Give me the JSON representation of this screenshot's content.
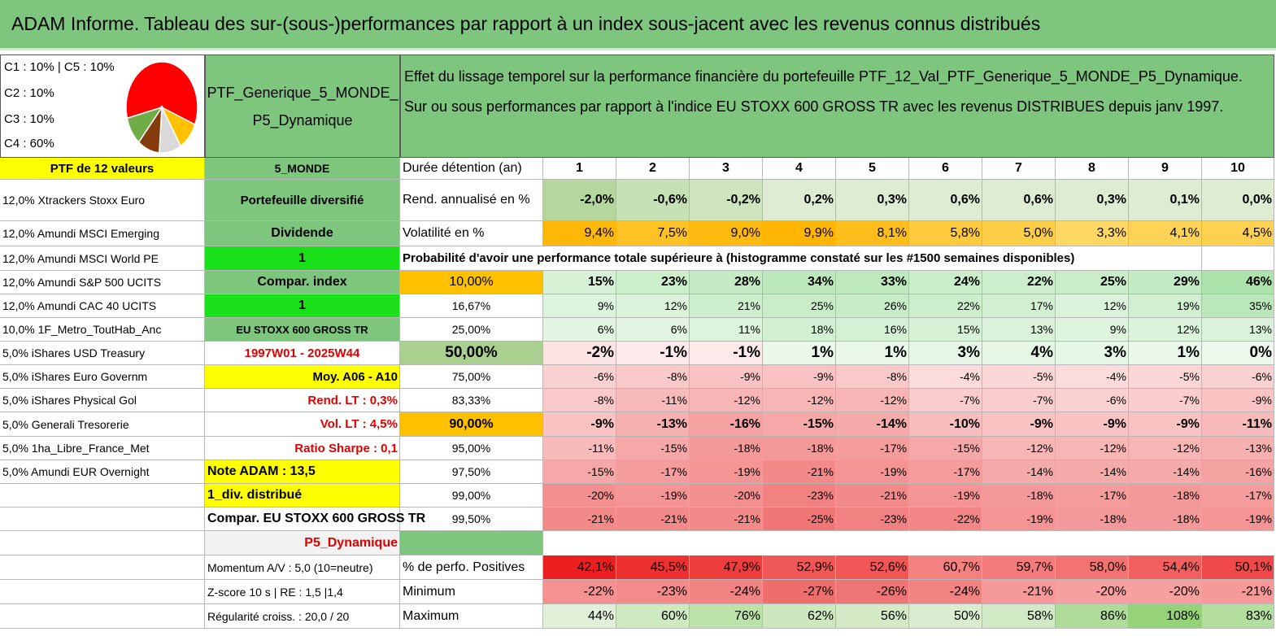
{
  "title": "ADAM Informe. Tableau des sur-(sous-)performances par rapport à un index sous-jacent avec les revenus connus distribués",
  "legend": {
    "lines": [
      "C1 : 10% | C5 : 10%",
      "C2 : 10%",
      "C3 : 10%",
      "C4 : 60%"
    ]
  },
  "pie": {
    "slices": [
      {
        "value": 60,
        "color": "#ff0000"
      },
      {
        "value": 10,
        "color": "#ffc000"
      },
      {
        "value": 10,
        "color": "#d9d9d9"
      },
      {
        "value": 10,
        "color": "#843c0c"
      },
      {
        "value": 10,
        "color": "#70ad47"
      }
    ]
  },
  "ptf_name": [
    "PTF_Generique_5_MONDE_",
    "P5_Dynamique"
  ],
  "description": [
    "Effet du lissage temporel sur la performance financière du portefeuille PTF_12_Val_PTF_Generique_5_MONDE_P5_Dynamique.",
    "Sur ou sous performances par rapport à l'indice EU STOXX 600 GROSS TR avec les revenus DISTRIBUES depuis janv 1997."
  ],
  "holdings_header": "PTF de 12 valeurs",
  "holdings": [
    "12,0% Xtrackers Stoxx Euro",
    "12,0% Amundi MSCI Emerging",
    "12,0% Amundi MSCI World PE",
    "12,0% Amundi S&P 500 UCITS",
    "12,0% Amundi CAC 40 UCITS",
    "10,0% 1F_Metro_ToutHab_Anc",
    "5,0% iShares USD Treasury",
    "5,0% iShares Euro Governm",
    "5,0% iShares Physical Gol",
    "5,0% Generali Tresorerie",
    "5,0% 1ha_Libre_France_Met",
    "5,0% Amundi EUR Overnight"
  ],
  "info": {
    "zone": "5_MONDE",
    "type": "Portefeuille diversifié",
    "dividende_label": "Dividende",
    "dividende_value": "1",
    "compar_label": "Compar. index",
    "compar_value": "1",
    "index_name": "EU STOXX 600 GROSS TR",
    "period": "1997W01 - 2025W44",
    "moy": "Moy. A06 - A10",
    "rend_lt": "Rend. LT : 0,3%",
    "vol_lt": "Vol. LT : 4,5%",
    "sharpe": "Ratio Sharpe : 0,1",
    "note": "Note ADAM : 13,5",
    "div": "1_div. distribué",
    "compar_full": "Compar. EU STOXX 600 GROSS TR",
    "profile": "P5_Dynamique",
    "momentum": "Momentum A/V : 5,0 (10=neutre)",
    "zscore": "Z-score 10 s | RE : 1,5 |1,4",
    "regularite": "Régularité croiss. : 20,0 / 20"
  },
  "labels": {
    "duree": "Durée détention (an)",
    "rend": "Rend. annualisé en %",
    "vol": "Volatilité en %",
    "proba": "Probabilité d'avoir une performance totale supérieure à (histogramme constaté sur les #1500 semaines disponibles)",
    "positives": "% de perfo. Positives",
    "minimum": "Minimum",
    "maximum": "Maximum"
  },
  "years": [
    "1",
    "2",
    "3",
    "4",
    "5",
    "6",
    "7",
    "8",
    "9",
    "10"
  ],
  "rend": [
    "-2,0%",
    "-0,6%",
    "-0,2%",
    "0,2%",
    "0,3%",
    "0,6%",
    "0,6%",
    "0,3%",
    "0,1%",
    "0,0%"
  ],
  "vol": [
    "9,4%",
    "7,5%",
    "9,0%",
    "9,9%",
    "8,1%",
    "5,8%",
    "5,0%",
    "3,3%",
    "4,1%",
    "4,5%"
  ],
  "quantiles": [
    {
      "q": "10,00%",
      "v": [
        "15%",
        "23%",
        "28%",
        "34%",
        "33%",
        "24%",
        "22%",
        "25%",
        "29%",
        "46%"
      ]
    },
    {
      "q": "16,67%",
      "v": [
        "9%",
        "12%",
        "21%",
        "25%",
        "26%",
        "22%",
        "17%",
        "12%",
        "19%",
        "35%"
      ]
    },
    {
      "q": "25,00%",
      "v": [
        "6%",
        "6%",
        "11%",
        "18%",
        "16%",
        "15%",
        "13%",
        "9%",
        "12%",
        "13%"
      ]
    },
    {
      "q": "50,00%",
      "v": [
        "-2%",
        "-1%",
        "-1%",
        "1%",
        "1%",
        "3%",
        "4%",
        "3%",
        "1%",
        "0%"
      ]
    },
    {
      "q": "75,00%",
      "v": [
        "-6%",
        "-8%",
        "-9%",
        "-9%",
        "-8%",
        "-4%",
        "-5%",
        "-4%",
        "-5%",
        "-6%"
      ]
    },
    {
      "q": "83,33%",
      "v": [
        "-8%",
        "-11%",
        "-12%",
        "-12%",
        "-12%",
        "-7%",
        "-7%",
        "-6%",
        "-7%",
        "-9%"
      ]
    },
    {
      "q": "90,00%",
      "v": [
        "-9%",
        "-13%",
        "-16%",
        "-15%",
        "-14%",
        "-10%",
        "-9%",
        "-9%",
        "-9%",
        "-11%"
      ]
    },
    {
      "q": "95,00%",
      "v": [
        "-11%",
        "-15%",
        "-18%",
        "-18%",
        "-17%",
        "-15%",
        "-12%",
        "-12%",
        "-12%",
        "-13%"
      ]
    },
    {
      "q": "97,50%",
      "v": [
        "-15%",
        "-17%",
        "-19%",
        "-21%",
        "-19%",
        "-17%",
        "-14%",
        "-14%",
        "-14%",
        "-16%"
      ]
    },
    {
      "q": "99,00%",
      "v": [
        "-20%",
        "-19%",
        "-20%",
        "-23%",
        "-21%",
        "-19%",
        "-18%",
        "-17%",
        "-18%",
        "-17%"
      ]
    },
    {
      "q": "99,50%",
      "v": [
        "-21%",
        "-21%",
        "-21%",
        "-25%",
        "-23%",
        "-22%",
        "-19%",
        "-18%",
        "-18%",
        "-19%"
      ]
    }
  ],
  "positives": [
    "42,1%",
    "45,5%",
    "47,9%",
    "52,9%",
    "52,6%",
    "60,7%",
    "59,7%",
    "58,0%",
    "54,4%",
    "50,1%"
  ],
  "minimum": [
    "-22%",
    "-23%",
    "-24%",
    "-27%",
    "-26%",
    "-24%",
    "-21%",
    "-20%",
    "-20%",
    "-21%"
  ],
  "maximum": [
    "44%",
    "60%",
    "76%",
    "62%",
    "56%",
    "50%",
    "58%",
    "86%",
    "108%",
    "83%"
  ]
}
